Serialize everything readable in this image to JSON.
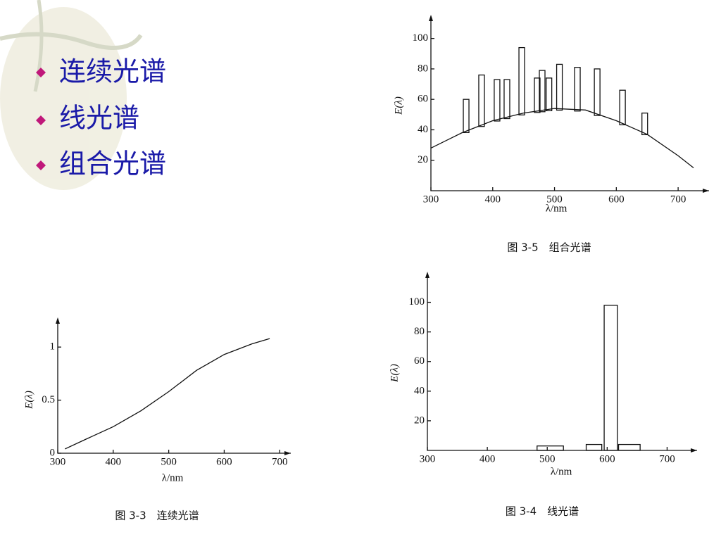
{
  "bullets": [
    "连续光谱",
    "线光谱",
    "组合光谱"
  ],
  "chart_data": [
    {
      "type": "combo",
      "title": "图 3-5　组合光谱",
      "xlabel": "λ/nm",
      "ylabel": "E(λ)",
      "xlim": [
        300,
        750
      ],
      "ylim": [
        0,
        110
      ],
      "xticks": [
        300,
        400,
        500,
        600,
        700
      ],
      "yticks": [
        20,
        40,
        60,
        80,
        100
      ],
      "series": [
        {
          "type": "line",
          "x": [
            300,
            350,
            400,
            450,
            500,
            550,
            600,
            650,
            700,
            725
          ],
          "values": [
            28,
            38,
            46,
            51,
            54,
            53,
            46,
            37,
            23,
            15
          ]
        },
        {
          "type": "bar",
          "x": [
            357,
            382,
            407,
            423,
            447,
            472,
            480,
            491,
            508,
            537,
            569,
            610,
            646
          ],
          "values": [
            60,
            76,
            73,
            73,
            94,
            74,
            79,
            74,
            83,
            81,
            80,
            66,
            51
          ]
        }
      ]
    },
    {
      "type": "line",
      "title": "图 3-3　连续光谱",
      "xlabel": "λ/nm",
      "ylabel": "E(λ)",
      "xlim": [
        300,
        720
      ],
      "ylim": [
        0,
        1.2
      ],
      "xticks": [
        300,
        400,
        500,
        600,
        700
      ],
      "yticks": [
        0,
        0.5,
        1
      ],
      "x": [
        313,
        350,
        400,
        450,
        500,
        550,
        600,
        650,
        682
      ],
      "values": [
        0.04,
        0.13,
        0.25,
        0.4,
        0.58,
        0.78,
        0.93,
        1.03,
        1.08
      ]
    },
    {
      "type": "bar",
      "title": "图 3-4　线光谱",
      "xlabel": "λ/nm",
      "ylabel": "E(λ)",
      "xlim": [
        300,
        750
      ],
      "ylim": [
        0,
        115
      ],
      "xticks": [
        300,
        400,
        500,
        600,
        700
      ],
      "yticks": [
        20,
        40,
        60,
        80,
        100
      ],
      "x": [
        483,
        565,
        595,
        619
      ],
      "x_end": [
        527,
        591,
        617,
        655
      ],
      "values": [
        3,
        4,
        98,
        4
      ]
    }
  ]
}
